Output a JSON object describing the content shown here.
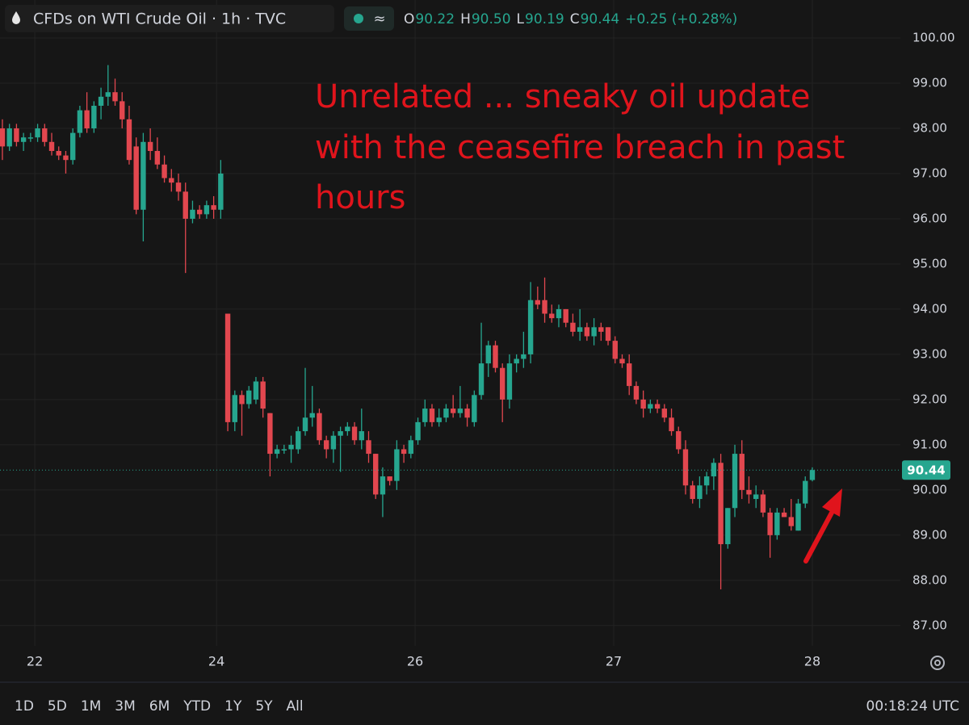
{
  "chart_data": {
    "type": "candlestick",
    "title": "CFDs on WTI Crude Oil · 1h · TVC",
    "ohlc_header": [
      {
        "key": "O",
        "value": "90.22"
      },
      {
        "key": "H",
        "value": "90.50"
      },
      {
        "key": "L",
        "value": "90.19"
      },
      {
        "key": "C",
        "value": "90.44"
      }
    ],
    "change": "+0.25 (+0.28%)",
    "annotation": [
      "Unrelated ... sneaky oil update",
      "with the ceasefire breach in past",
      "hours"
    ],
    "up_color": "#26a68f",
    "down_color": "#e2474f",
    "open": [
      98.0,
      97.6,
      98.0,
      97.7,
      97.8,
      97.8,
      98.0,
      97.7,
      97.5,
      97.4,
      97.3,
      97.9,
      98.4,
      98.0,
      98.5,
      98.7,
      98.8,
      98.6,
      98.2,
      97.6,
      96.2,
      97.7,
      97.5,
      97.2,
      96.9,
      96.8,
      96.6,
      96.0,
      96.2,
      96.1,
      96.3,
      96.2,
      93.9,
      91.5,
      92.1,
      91.9,
      92.0,
      92.4,
      91.7,
      90.8,
      90.9,
      90.9,
      90.9,
      91.3,
      91.6,
      91.7,
      91.1,
      90.9,
      91.2,
      91.3,
      91.4,
      91.1,
      91.1,
      90.8,
      89.9,
      90.3,
      90.2,
      90.9,
      90.8,
      91.1,
      91.5,
      91.8,
      91.5,
      91.6,
      91.8,
      91.7,
      91.8,
      91.5,
      92.1,
      92.8,
      93.2,
      92.7,
      92.0,
      92.8,
      92.9,
      93.0,
      94.2,
      94.2,
      93.9,
      93.8,
      94.0,
      93.7,
      93.5,
      93.6,
      93.4,
      93.6,
      93.6,
      93.3,
      92.9,
      92.8,
      92.3,
      92.0,
      91.8,
      91.9,
      91.8,
      91.6,
      91.3,
      90.9,
      90.1,
      89.8,
      90.1,
      90.3,
      90.6,
      88.8,
      89.6,
      90.8,
      90.0,
      89.8,
      89.9,
      89.5,
      89.0,
      89.5,
      89.4,
      89.1,
      89.7,
      90.22
    ],
    "high": [
      98.2,
      98.1,
      98.1,
      97.9,
      97.9,
      98.1,
      98.1,
      97.9,
      97.6,
      97.5,
      98.0,
      98.5,
      98.8,
      98.6,
      98.9,
      99.4,
      99.1,
      98.8,
      98.5,
      97.8,
      97.9,
      98.0,
      97.8,
      97.4,
      97.1,
      97.0,
      96.8,
      96.4,
      96.3,
      96.4,
      96.5,
      97.3,
      93.9,
      92.2,
      92.2,
      92.3,
      92.5,
      92.5,
      91.7,
      91.0,
      91.0,
      91.2,
      91.4,
      92.7,
      92.3,
      91.8,
      91.2,
      91.3,
      91.4,
      91.5,
      91.5,
      91.8,
      91.3,
      90.8,
      90.5,
      90.3,
      91.1,
      91.0,
      91.2,
      91.6,
      92.0,
      91.9,
      91.8,
      91.9,
      92.1,
      92.3,
      91.9,
      92.2,
      93.7,
      93.3,
      93.3,
      92.8,
      93.0,
      93.0,
      93.5,
      94.6,
      94.5,
      94.7,
      94.1,
      94.1,
      94.0,
      93.9,
      94.0,
      93.7,
      93.8,
      93.7,
      93.6,
      93.4,
      93.0,
      93.0,
      92.4,
      92.2,
      92.0,
      92.0,
      91.9,
      91.8,
      91.4,
      91.1,
      90.2,
      90.3,
      90.4,
      90.7,
      90.8,
      89.6,
      91.0,
      91.1,
      90.3,
      90.1,
      90.0,
      89.6,
      89.6,
      89.6,
      89.8,
      89.8,
      90.3,
      90.5
    ],
    "low": [
      97.3,
      97.5,
      97.6,
      97.5,
      97.7,
      97.7,
      97.6,
      97.4,
      97.3,
      97.0,
      97.2,
      97.8,
      97.9,
      97.9,
      98.2,
      98.5,
      98.5,
      98.0,
      97.2,
      96.1,
      95.5,
      97.3,
      97.1,
      96.8,
      96.6,
      96.4,
      94.8,
      95.9,
      96.0,
      96.0,
      96.0,
      96.0,
      91.3,
      91.3,
      91.2,
      91.8,
      91.9,
      91.6,
      90.3,
      90.7,
      90.8,
      90.6,
      90.8,
      91.2,
      91.4,
      91.0,
      90.7,
      90.6,
      90.4,
      91.2,
      91.0,
      90.9,
      90.6,
      89.8,
      89.4,
      90.1,
      90.0,
      90.6,
      90.7,
      91.0,
      91.4,
      91.4,
      91.4,
      91.5,
      91.6,
      91.6,
      91.4,
      91.4,
      92.0,
      92.5,
      92.6,
      91.5,
      91.8,
      92.6,
      92.7,
      92.8,
      94.0,
      93.7,
      93.7,
      93.6,
      93.6,
      93.4,
      93.3,
      93.3,
      93.2,
      93.3,
      93.2,
      92.8,
      92.7,
      92.1,
      91.9,
      91.6,
      91.7,
      91.7,
      91.5,
      91.2,
      90.8,
      89.9,
      89.7,
      89.6,
      89.9,
      90.0,
      87.8,
      88.7,
      89.4,
      89.8,
      89.7,
      89.6,
      89.4,
      88.5,
      88.9,
      89.4,
      89.1,
      89.1,
      89.6,
      90.19
    ],
    "close": [
      97.6,
      98.0,
      97.7,
      97.8,
      97.8,
      98.0,
      97.7,
      97.5,
      97.4,
      97.3,
      97.9,
      98.4,
      98.0,
      98.5,
      98.7,
      98.8,
      98.6,
      98.2,
      97.3,
      96.2,
      97.7,
      97.5,
      97.2,
      96.9,
      96.8,
      96.6,
      96.0,
      96.2,
      96.1,
      96.3,
      96.2,
      97.0,
      91.5,
      92.1,
      91.9,
      92.2,
      92.4,
      91.8,
      90.8,
      90.9,
      90.9,
      91.0,
      91.3,
      91.6,
      91.7,
      91.1,
      90.9,
      91.2,
      91.3,
      91.4,
      91.1,
      91.3,
      90.8,
      89.9,
      90.3,
      90.2,
      90.9,
      90.8,
      91.1,
      91.5,
      91.8,
      91.5,
      91.6,
      91.8,
      91.7,
      91.8,
      91.6,
      92.1,
      92.8,
      93.2,
      92.7,
      92.0,
      92.8,
      92.9,
      93.0,
      94.2,
      94.1,
      93.9,
      93.8,
      94.0,
      93.7,
      93.5,
      93.6,
      93.4,
      93.6,
      93.5,
      93.3,
      92.9,
      92.8,
      92.3,
      92.0,
      91.8,
      91.9,
      91.8,
      91.6,
      91.3,
      90.9,
      90.1,
      89.8,
      90.1,
      90.3,
      90.6,
      88.8,
      89.6,
      90.8,
      90.0,
      89.9,
      89.9,
      89.5,
      89.0,
      89.5,
      89.4,
      89.2,
      89.7,
      90.2,
      90.44
    ],
    "ylim": [
      86.55,
      100.84
    ],
    "yticks": [
      {
        "value": 87,
        "label": "87.00"
      },
      {
        "value": 88,
        "label": "88.00"
      },
      {
        "value": 89,
        "label": "89.00"
      },
      {
        "value": 90,
        "label": "90.00"
      },
      {
        "value": 91,
        "label": "91.00"
      },
      {
        "value": 92,
        "label": "92.00"
      },
      {
        "value": 93,
        "label": "93.00"
      },
      {
        "value": 94,
        "label": "94.00"
      },
      {
        "value": 95,
        "label": "95.00"
      },
      {
        "value": 96,
        "label": "96.00"
      },
      {
        "value": 97,
        "label": "97.00"
      },
      {
        "value": 98,
        "label": "98.00"
      },
      {
        "value": 99,
        "label": "99.00"
      },
      {
        "value": 100,
        "label": "100.00"
      }
    ],
    "xlim": [
      -0.34,
      127.5
    ],
    "xticks": [
      {
        "value": 4.6,
        "label": "22"
      },
      {
        "value": 30.4,
        "label": "24"
      },
      {
        "value": 58.6,
        "label": "26"
      },
      {
        "value": 86.8,
        "label": "27"
      },
      {
        "value": 115,
        "label": "28"
      }
    ],
    "grid": true,
    "last_price": {
      "value": 90.44,
      "label": "90.44"
    },
    "range_buttons": [
      "1D",
      "5D",
      "1M",
      "3M",
      "6M",
      "YTD",
      "1Y",
      "5Y",
      "All"
    ],
    "clock": "00:18:24 UTC"
  }
}
